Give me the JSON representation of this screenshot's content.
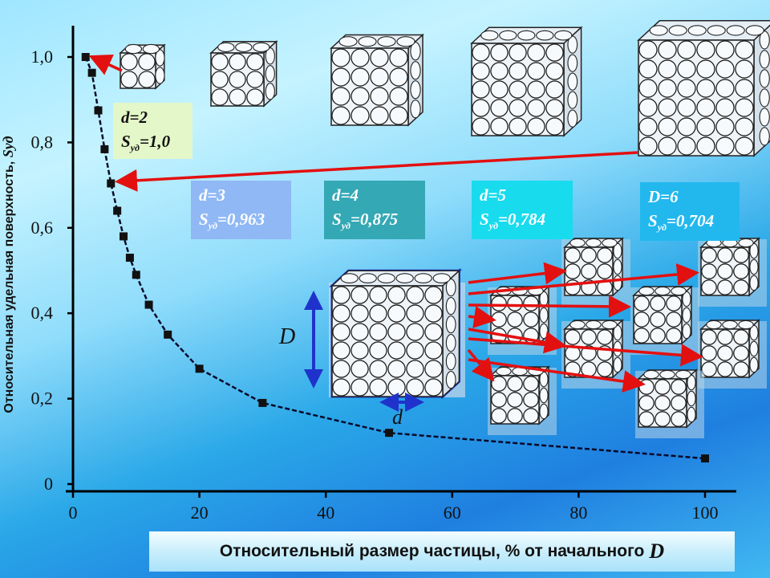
{
  "chart_data": {
    "type": "scatter",
    "x": [
      2,
      3,
      4,
      5,
      6,
      7,
      8,
      9,
      10,
      12,
      15,
      20,
      30,
      50,
      100
    ],
    "y": [
      1.0,
      0.963,
      0.875,
      0.784,
      0.704,
      0.64,
      0.58,
      0.53,
      0.49,
      0.42,
      0.35,
      0.27,
      0.19,
      0.12,
      0.06
    ],
    "xlim": [
      0,
      105
    ],
    "ylim": [
      0,
      1.05
    ],
    "xticks": [
      "0",
      "20",
      "40",
      "60",
      "80",
      "100"
    ],
    "yticks": [
      "0",
      "0,2",
      "0,4",
      "0,6",
      "0,8",
      "1,0"
    ],
    "ylabel": "Относительная удельная поверхность,",
    "ylabel_symbol": "Sуд",
    "xlabel": "Относительный размер частицы, % от начального",
    "xlabel_symbol": "D",
    "grid": false
  },
  "annotations": [
    {
      "d": "d=2",
      "s_base": "S",
      "s_sub": "уд",
      "s_val": "=1,0",
      "bg": "#e4f7c8",
      "fg": "#111111"
    },
    {
      "d": "d=3",
      "s_base": "S",
      "s_sub": "уд",
      "s_val": "=0,963",
      "bg": "#8fb8f5",
      "fg": "#ffffff"
    },
    {
      "d": "d=4",
      "s_base": "S",
      "s_sub": "уд",
      "s_val": "=0,875",
      "bg": "#34a8b4",
      "fg": "#ffffff"
    },
    {
      "d": "d=5",
      "s_base": "S",
      "s_sub": "уд",
      "s_val": "=0,784",
      "bg": "#18dbee",
      "fg": "#ffffff"
    },
    {
      "d": "D=6",
      "s_base": "S",
      "s_sub": "уд",
      "s_val": "=0,704",
      "bg": "#22b8ee",
      "fg": "#ffffff"
    }
  ],
  "diagram": {
    "big_label": "D",
    "small_label": "d"
  },
  "colors": {
    "arrow": "#e31010",
    "curve": "#0a0a2a",
    "cube_edge": "#1f33cc",
    "dimension_arrow": "#1f33cc"
  }
}
